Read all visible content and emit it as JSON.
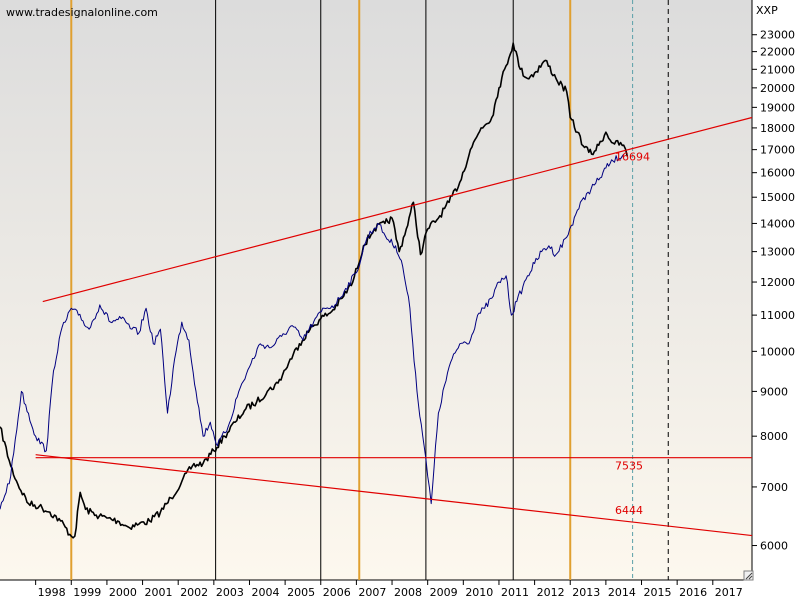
{
  "watermark": "www.tradesignalonline.com",
  "symbol": "XXP",
  "colors": {
    "background_top": "#dcdcdc",
    "background_bottom": "#fdf8ee",
    "price_black": "#000000",
    "price_blue": "#000080",
    "trendline": "#e00000",
    "orange_line": "#e0a030",
    "dashed_future": "#5aa0a8"
  },
  "chart_data": {
    "type": "line",
    "title": "",
    "xlabel": "",
    "ylabel": "",
    "scale": "log",
    "xlim": [
      1997.0,
      2018.1
    ],
    "ylim": [
      5480,
      25200
    ],
    "x_ticks": [
      "1998",
      "1999",
      "2000",
      "2001",
      "2002",
      "2003",
      "2004",
      "2005",
      "2006",
      "2007",
      "2008",
      "2009",
      "2010",
      "2011",
      "2012",
      "2013",
      "2014",
      "2015",
      "2016",
      "2017"
    ],
    "y_ticks": [
      6000,
      7000,
      8000,
      9000,
      10000,
      11000,
      12000,
      13000,
      14000,
      15000,
      16000,
      17000,
      18000,
      19000,
      20000,
      21000,
      22000,
      23000
    ],
    "grid": false,
    "series": [
      {
        "color": "#000000",
        "x": [
          1997.0,
          1997.3,
          1997.5,
          1997.8,
          1998.1,
          1998.4,
          1998.7,
          1999.0,
          1999.1,
          1999.25,
          1999.4,
          1999.7,
          2000.0,
          2000.3,
          2000.6,
          2000.9,
          2001.2,
          2001.5,
          2001.8,
          2002.1,
          2002.4,
          2002.7,
          2003.0,
          2003.3,
          2003.6,
          2003.9,
          2004.2,
          2004.5,
          2004.8,
          2005.1,
          2005.4,
          2005.7,
          2006.0,
          2006.3,
          2006.6,
          2006.9,
          2007.2,
          2007.5,
          2007.8,
          2008.0,
          2008.2,
          2008.4,
          2008.6,
          2008.8,
          2009.0,
          2009.3,
          2009.6,
          2009.9,
          2010.2,
          2010.5,
          2010.8,
          2011.0,
          2011.2,
          2011.4,
          2011.6,
          2011.8,
          2012.0,
          2012.3,
          2012.6,
          2012.9,
          2013.0,
          2013.2,
          2013.4,
          2013.6,
          2013.8,
          2014.0,
          2014.2,
          2014.5,
          2014.6
        ],
        "y": [
          8200,
          7400,
          7050,
          6700,
          6650,
          6550,
          6400,
          6150,
          6150,
          6900,
          6600,
          6500,
          6450,
          6400,
          6300,
          6350,
          6400,
          6550,
          6800,
          7100,
          7400,
          7450,
          7700,
          8000,
          8300,
          8600,
          8750,
          9000,
          9200,
          9700,
          10200,
          10600,
          10900,
          11100,
          11500,
          12000,
          13200,
          13800,
          14000,
          14200,
          13000,
          13800,
          14800,
          12900,
          13800,
          14200,
          14800,
          15600,
          17000,
          18000,
          18500,
          20000,
          21200,
          22500,
          21000,
          20500,
          20800,
          21500,
          20500,
          19800,
          18500,
          17800,
          17100,
          16800,
          17200,
          17800,
          17300,
          17200,
          16700
        ]
      },
      {
        "color": "#000080",
        "x": [
          1997.0,
          1997.3,
          1997.6,
          1998.0,
          1998.3,
          1998.5,
          1998.7,
          1999.0,
          1999.2,
          1999.5,
          1999.8,
          2000.1,
          2000.4,
          2000.7,
          2000.9,
          2001.1,
          2001.3,
          2001.5,
          2001.7,
          2001.9,
          2002.1,
          2002.3,
          2002.5,
          2002.7,
          2002.9,
          2003.1,
          2003.4,
          2003.7,
          2004.0,
          2004.3,
          2004.6,
          2004.9,
          2005.2,
          2005.5,
          2005.8,
          2006.1,
          2006.4,
          2006.7,
          2007.0,
          2007.3,
          2007.6,
          2007.9,
          2008.1,
          2008.3,
          2008.5,
          2008.7,
          2008.9,
          2009.0,
          2009.1,
          2009.3,
          2009.6,
          2009.9,
          2010.2,
          2010.4,
          2010.6,
          2010.8,
          2011.0,
          2011.2,
          2011.35,
          2011.5,
          2011.8,
          2012.0,
          2012.2,
          2012.4,
          2012.6,
          2012.9,
          2013.2,
          2013.5,
          2013.8,
          2014.0,
          2014.2,
          2014.5
        ],
        "y": [
          6600,
          7200,
          9000,
          8000,
          7700,
          9500,
          10500,
          11200,
          11000,
          10600,
          11300,
          10800,
          10900,
          10600,
          10500,
          11200,
          10200,
          10600,
          8500,
          9800,
          10800,
          10300,
          9000,
          8000,
          8300,
          7800,
          8200,
          9000,
          9600,
          10200,
          10100,
          10400,
          10700,
          10300,
          10800,
          11200,
          11300,
          11800,
          12300,
          13500,
          14000,
          13400,
          13200,
          12500,
          11200,
          9000,
          7800,
          7200,
          6700,
          8500,
          9600,
          10200,
          10300,
          11000,
          11200,
          11500,
          12000,
          12200,
          11000,
          11400,
          12200,
          12600,
          13000,
          13200,
          12900,
          13500,
          14500,
          15200,
          15700,
          16200,
          16500,
          16800
        ]
      }
    ],
    "trendlines": [
      {
        "x": [
          1998.2,
          2018.1
        ],
        "y": [
          11400,
          18500
        ]
      },
      {
        "x": [
          1998.0,
          2018.1
        ],
        "y": [
          7560,
          7560
        ],
        "label": "7535"
      },
      {
        "x": [
          1998.0,
          2018.1
        ],
        "y": [
          7620,
          6160
        ],
        "label": "6444"
      }
    ],
    "price_label": {
      "x": 2014.6,
      "y": 16694,
      "text": "16694"
    },
    "vertical_lines": {
      "black": [
        2003.05,
        2006.0,
        2008.95,
        2011.4
      ],
      "orange": [
        1999.0,
        2007.08,
        2013.0
      ],
      "dashed_teal": [
        2014.75
      ],
      "dashed_black": [
        2015.75
      ]
    }
  }
}
